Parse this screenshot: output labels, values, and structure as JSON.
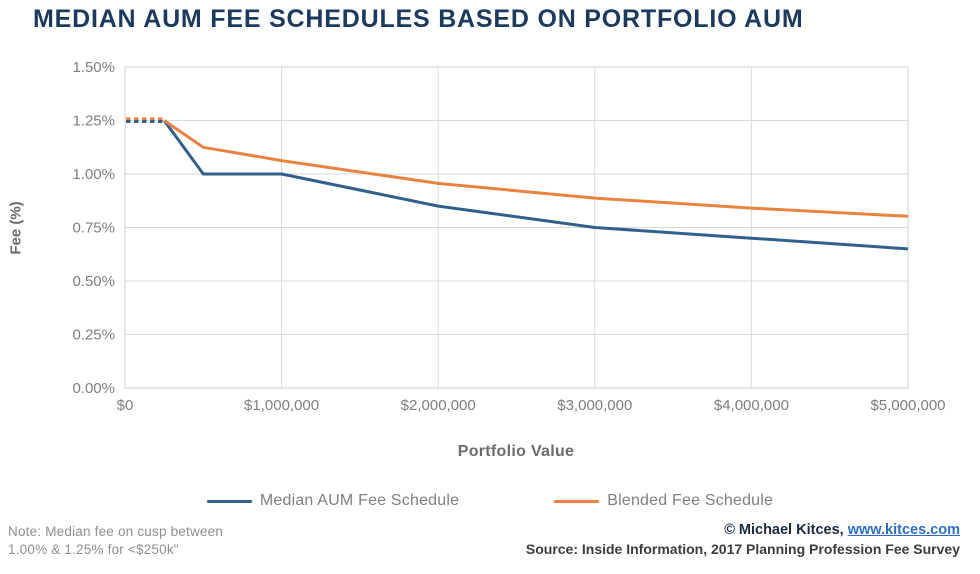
{
  "title": "MEDIAN AUM FEE SCHEDULES BASED ON PORTFOLIO AUM",
  "colors": {
    "title": "#1c3a5e",
    "median_line": "#31608d",
    "blended_line": "#e8833f",
    "grid": "#d9d9d9",
    "axis_text": "#7f7f7f",
    "axis_title": "#6b6b6b",
    "note_text": "#8f8f8f",
    "link": "#2a6fc4",
    "credit_text": "#1b2940",
    "source_text": "#3c3c3c"
  },
  "chart_data": {
    "type": "line",
    "title": "MEDIAN AUM FEE SCHEDULES BASED ON PORTFOLIO AUM",
    "xlabel": "Portfolio Value",
    "ylabel": "Fee (%)",
    "xlim": [
      0,
      5000000
    ],
    "ylim": [
      0,
      1.5
    ],
    "grid": true,
    "legend_position": "bottom",
    "x_ticks": [
      0,
      1000000,
      2000000,
      3000000,
      4000000,
      5000000
    ],
    "x_tick_labels": [
      "$0",
      "$1,000,000",
      "$2,000,000",
      "$3,000,000",
      "$4,000,000",
      "$5,000,000"
    ],
    "y_ticks": [
      0,
      0.25,
      0.5,
      0.75,
      1.0,
      1.25,
      1.5
    ],
    "y_tick_labels": [
      "0.00%",
      "0.25%",
      "0.50%",
      "0.75%",
      "1.00%",
      "1.25%",
      "1.50%"
    ],
    "series": [
      {
        "name": "Median AUM Fee Schedule",
        "color_key": "median_line",
        "x": [
          250000,
          500000,
          1000000,
          2000000,
          3000000,
          4000000,
          5000000
        ],
        "values": [
          1.25,
          1.0,
          1.0,
          0.85,
          0.75,
          0.7,
          0.65
        ]
      },
      {
        "name": "Blended Fee Schedule",
        "color_key": "blended_line",
        "x": [
          250000,
          500000,
          1000000,
          2000000,
          3000000,
          4000000,
          5000000
        ],
        "values": [
          1.25,
          1.125,
          1.0625,
          0.9563,
          0.8875,
          0.8406,
          0.8025
        ]
      }
    ],
    "dotted_segment": {
      "description": "Median fee on cusp between 1.00% and 1.25% for portfolios under $250k",
      "x": [
        0,
        250000
      ],
      "value": 1.25
    }
  },
  "footnote": {
    "line1": "Note: Median fee on cusp between",
    "line2": "1.00% & 1.25% for <$250k\""
  },
  "credits": {
    "copyright_prefix": "© Michael Kitces, ",
    "link_text": "www.kitces.com",
    "source_line": "Source: Inside Information, 2017 Planning Profession Fee Survey"
  }
}
